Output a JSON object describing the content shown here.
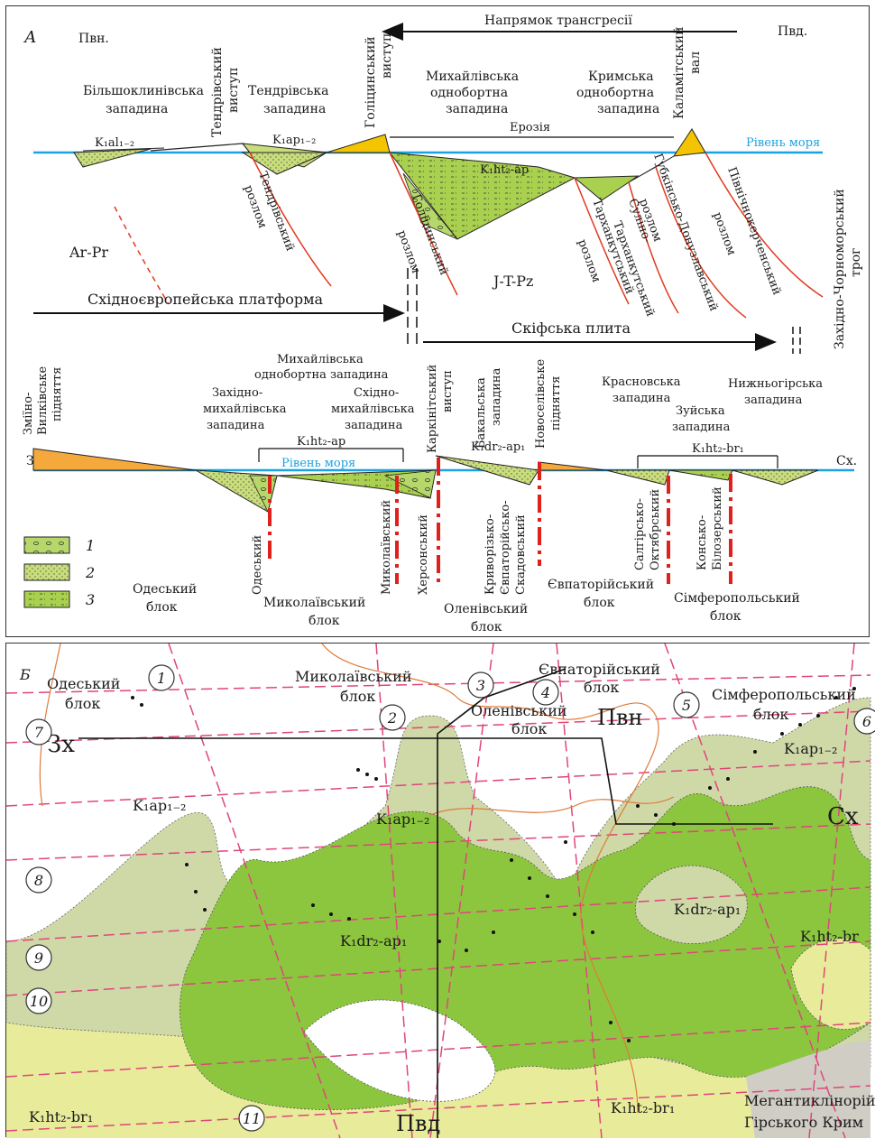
{
  "panelA": {
    "letter": "А",
    "north": "Пвн.",
    "south": "Пвд.",
    "transgression": "Напрямок трансгресії",
    "sea_level": "Рівень моря",
    "erosion": "Ерозія",
    "basins_top": [
      "Більшоклинівська",
      "западина",
      "Тендрівська",
      "западина",
      "Михайлівська",
      "однобортна",
      "западина",
      "Кримська",
      "однобортна",
      "западина"
    ],
    "uplifts_top": {
      "tendra": [
        "Тендрівський",
        "виступ"
      ],
      "golitsyn": [
        "Голіцинський",
        "виступ"
      ],
      "kalamit": [
        "Каламітський",
        "вал"
      ]
    },
    "strat_top": {
      "al": "K₁al₁₋₂",
      "ap": "K₁ap₁₋₂",
      "htap": "K₁ht₂-ap"
    },
    "faults_top": {
      "tendra": [
        "Тендрівський",
        "розлом"
      ],
      "golitsyn": [
        "Голіцинський",
        "розлом"
      ],
      "tarkhankut": [
        "Тарханкутський",
        "розлом"
      ],
      "sulino": [
        "Суліно-",
        "Тарханкутський"
      ],
      "gubkin": [
        "Губкінсько-Донузлавський",
        "розлом"
      ],
      "north_kerch": [
        "Північнокерченський",
        "розлом"
      ]
    },
    "regions": {
      "arpr": "Ar-Pr",
      "jtpz": "J-T-Pz",
      "trough": [
        "Західно-Чорноморський",
        "трог"
      ],
      "platform": "Східноєвропейська платформа",
      "plate": "Скіфська плита"
    },
    "west": "Зх.",
    "east": "Сх.",
    "uplifts_bottom": {
      "zmiino": [
        "Зміїно-",
        "Вилківське",
        "підняття"
      ],
      "karkinit": [
        "Каркінітський",
        "виступ"
      ],
      "novoselivske": [
        "Новоселівське",
        "підняття"
      ]
    },
    "basins_bottom": {
      "mykhailivska": [
        "Михайлівська",
        "однобортна западина"
      ],
      "zakhidno": [
        "Західно-",
        "михайлівська",
        "западина"
      ],
      "skhidno": [
        "Східно-",
        "михайлівська",
        "западина"
      ],
      "bakalska": [
        "Бакальська",
        "западина"
      ],
      "krasnovska": [
        "Красновська",
        "западина"
      ],
      "zuiska": [
        "Зуйська",
        "западина"
      ],
      "nyzhnohirska": [
        "Нижньогірська",
        "западина"
      ]
    },
    "strat_bottom": {
      "htap": "K₁ht₂-ap",
      "drap": "K₁dr₂-ap₁",
      "htbr": "K₁ht₂-br₁"
    },
    "faults_bottom": {
      "odeskyi": "Одеський",
      "mykolaivskyi": "Миколаївський",
      "khersonskyi": "Херсонський",
      "kryvorizko": [
        "Криворізько-",
        "Євпаторійсько-",
        "Скадовський"
      ],
      "salgirsko": [
        "Салгірсько-",
        "Октябрський"
      ],
      "konsko": [
        "Консько-",
        "Білозерський"
      ]
    },
    "blocks": {
      "odeskyi": [
        "Одеський",
        "блок"
      ],
      "mykolaivskyi": [
        "Миколаївський",
        "блок"
      ],
      "olenivskyi": [
        "Оленівський",
        "блок"
      ],
      "yevpatoriiskyi": [
        "Євпаторійський",
        "блок"
      ],
      "simferopolskyi": [
        "Сімферопольський",
        "блок"
      ]
    },
    "legend": [
      "1",
      "2",
      "3"
    ]
  },
  "panelB": {
    "letter": "Б",
    "blocks": {
      "odeskyi": [
        "Одеський",
        "блок"
      ],
      "mykolaivskyi": [
        "Миколаївський",
        "блок"
      ],
      "yevpatoriiskyi": [
        "Євпаторійський",
        "блок"
      ],
      "olenivskyi": [
        "Оленівський",
        "блок"
      ],
      "simferopolskyi": [
        "Сімферопольський",
        "блок"
      ],
      "megaanti": [
        "Мегантиклінорій",
        "Гірського Крим"
      ]
    },
    "north": "Пвн",
    "south": "Пвд",
    "west": "Зх",
    "east": "Сх",
    "strat": {
      "ap": "K₁ap₁₋₂",
      "ap_ne": "K₁ap₁₋₂",
      "dr_w": "K₁dr₂-ap₁",
      "dr_e": "K₁dr₂-ap₁",
      "ht_w": "K₁ht₂-br₁",
      "ht_c": "K₁ht₂-br₁",
      "ht_e": "K₁ht₂-br"
    },
    "numbers": [
      "1",
      "2",
      "3",
      "4",
      "5",
      "6",
      "7",
      "8",
      "9",
      "10",
      "11"
    ]
  },
  "colors": {
    "sea_level": "#1aa3e0",
    "fault": "#e03a1e",
    "uplift": "#f5c400",
    "orange_fill": "#f5a93c",
    "green_dark": "#8cc63f",
    "green_light": "#cfd9a8",
    "yellow_light": "#e8ec9a",
    "pink_dash": "#e0457b",
    "red_dash": "#e0201b"
  }
}
